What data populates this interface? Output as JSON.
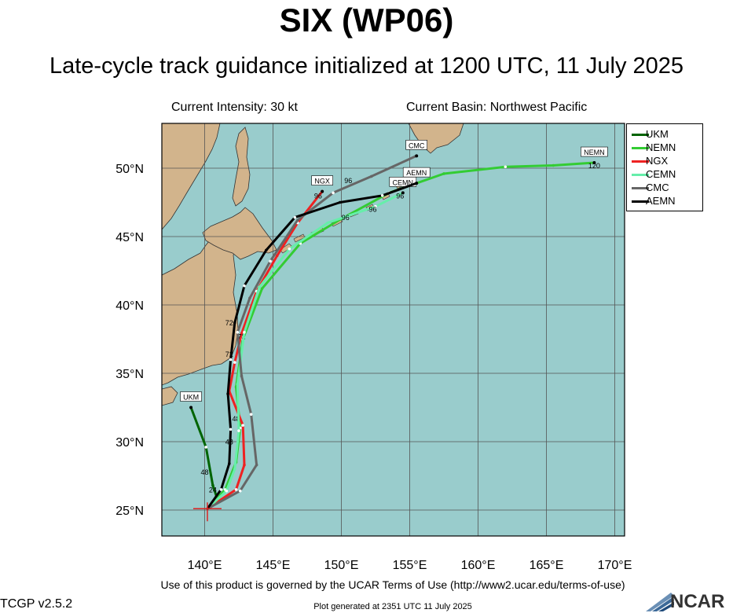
{
  "header": {
    "title": "SIX (WP06)",
    "subtitle": "Late-cycle track guidance initialized at 1200 UTC, 11 July 2025",
    "intensity": "Current Intensity: 30 kt",
    "basin": "Current Basin: Northwest Pacific"
  },
  "footer": {
    "terms": "Use of this product is governed by the UCAR Terms of Use (http://www2.ucar.edu/terms-of-use)",
    "version": "TCGP v2.5.2",
    "generated": "Plot generated at 2351 UTC   11 July 2025",
    "logo_text": "NCAR"
  },
  "colors": {
    "ocean": "#99cccc",
    "land": "#d2b48c",
    "grid": "#555555"
  },
  "axes": {
    "lon_ticks": [
      "140°E",
      "145°E",
      "150°E",
      "155°E",
      "160°E",
      "165°E",
      "170°E"
    ],
    "lat_ticks": [
      "25°N",
      "30°N",
      "35°N",
      "40°N",
      "45°N",
      "50°N"
    ]
  },
  "storm_position": {
    "lon": 140.2,
    "lat": 25.1
  },
  "legend": [
    {
      "name": "UKM",
      "color": "#006400"
    },
    {
      "name": "NEMN",
      "color": "#33cc33"
    },
    {
      "name": "NGX",
      "color": "#ee2222"
    },
    {
      "name": "CEMN",
      "color": "#66eeaa"
    },
    {
      "name": "CMC",
      "color": "#666666"
    },
    {
      "name": "AEMN",
      "color": "#000000"
    }
  ],
  "tracks": [
    {
      "name": "UKM",
      "color": "#006400",
      "points": [
        [
          140.2,
          25.1
        ],
        [
          141.0,
          25.6
        ],
        [
          140.6,
          26.8
        ],
        [
          140.1,
          29.6
        ],
        [
          139.0,
          32.5
        ]
      ],
      "end_label": "UKM",
      "hour_labels": [
        {
          "text": "24",
          "lon": 140.6,
          "lat": 26.3
        },
        {
          "text": "48",
          "lon": 140.0,
          "lat": 27.6
        }
      ]
    },
    {
      "name": "NEMN",
      "color": "#33cc33",
      "points": [
        [
          140.2,
          25.1
        ],
        [
          141.5,
          26.5
        ],
        [
          142.3,
          28.5
        ],
        [
          142.6,
          31.0
        ],
        [
          142.3,
          34.0
        ],
        [
          142.8,
          37.5
        ],
        [
          144.2,
          41.2
        ],
        [
          147.0,
          44.5
        ],
        [
          150.0,
          46.3
        ],
        [
          153.5,
          48.2
        ],
        [
          157.5,
          49.6
        ],
        [
          162.0,
          50.1
        ],
        [
          165.5,
          50.2
        ],
        [
          168.5,
          50.4
        ]
      ],
      "end_label": "NEMN",
      "hour_labels": [
        {
          "text": "120",
          "lon": 168.5,
          "lat": 50.0
        }
      ]
    },
    {
      "name": "NGX",
      "color": "#ee2222",
      "points": [
        [
          140.2,
          25.1
        ],
        [
          142.3,
          26.5
        ],
        [
          142.9,
          28.3
        ],
        [
          142.8,
          31.2
        ],
        [
          141.8,
          33.7
        ],
        [
          142.2,
          35.8
        ],
        [
          142.7,
          37.9
        ],
        [
          143.8,
          41.0
        ],
        [
          145.3,
          43.6
        ],
        [
          146.8,
          46.0
        ],
        [
          148.6,
          48.3
        ]
      ],
      "end_label": "NGX",
      "hour_labels": [
        {
          "text": "72",
          "lon": 142.7,
          "lat": 37.5
        },
        {
          "text": "96",
          "lon": 148.3,
          "lat": 47.8
        },
        {
          "text": "48",
          "lon": 142.3,
          "lat": 31.5
        }
      ]
    },
    {
      "name": "CEMN",
      "color": "#66eeaa",
      "points": [
        [
          140.2,
          25.1
        ],
        [
          141.6,
          26.4
        ],
        [
          142.2,
          28.0
        ],
        [
          142.5,
          30.8
        ],
        [
          142.4,
          34.2
        ],
        [
          142.9,
          38.0
        ],
        [
          144.0,
          41.3
        ],
        [
          146.2,
          44.1
        ],
        [
          149.0,
          46.0
        ],
        [
          152.5,
          47.2
        ],
        [
          154.5,
          48.2
        ]
      ],
      "end_label": "CEMN",
      "hour_labels": [
        {
          "text": "96",
          "lon": 152.3,
          "lat": 46.8
        },
        {
          "text": "96",
          "lon": 154.3,
          "lat": 47.8
        }
      ]
    },
    {
      "name": "CMC",
      "color": "#666666",
      "points": [
        [
          140.2,
          25.1
        ],
        [
          142.6,
          26.4
        ],
        [
          143.8,
          28.3
        ],
        [
          143.4,
          32.0
        ],
        [
          142.7,
          34.8
        ],
        [
          142.4,
          38.0
        ],
        [
          143.3,
          40.5
        ],
        [
          144.8,
          43.2
        ],
        [
          146.8,
          46.2
        ],
        [
          149.4,
          48.2
        ],
        [
          152.2,
          49.4
        ],
        [
          155.5,
          50.9
        ]
      ],
      "end_label": "CMC",
      "hour_labels": [
        {
          "text": "96",
          "lon": 150.5,
          "lat": 48.9
        },
        {
          "text": "96",
          "lon": 150.3,
          "lat": 46.2
        }
      ]
    },
    {
      "name": "AEMN",
      "color": "#000000",
      "points": [
        [
          140.2,
          25.1
        ],
        [
          141.2,
          26.5
        ],
        [
          141.8,
          28.4
        ],
        [
          141.9,
          30.9
        ],
        [
          141.7,
          33.5
        ],
        [
          141.9,
          36.0
        ],
        [
          142.2,
          38.7
        ],
        [
          142.9,
          41.4
        ],
        [
          144.5,
          44.0
        ],
        [
          146.6,
          46.4
        ],
        [
          149.9,
          47.5
        ],
        [
          153.0,
          48.0
        ],
        [
          155.5,
          48.9
        ]
      ],
      "end_label": "AEMN",
      "hour_labels": [
        {
          "text": "48",
          "lon": 141.8,
          "lat": 29.8
        },
        {
          "text": "72",
          "lon": 141.8,
          "lat": 38.5
        },
        {
          "text": "72",
          "lon": 141.8,
          "lat": 36.2
        }
      ]
    }
  ]
}
